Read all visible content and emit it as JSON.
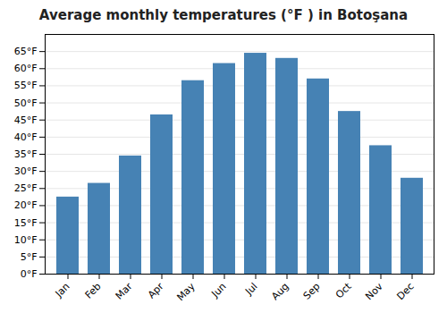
{
  "chart_data": {
    "type": "bar",
    "title": "Average monthly temperatures (°F ) in Botoşana",
    "categories": [
      "Jan",
      "Feb",
      "Mar",
      "Apr",
      "May",
      "Jun",
      "Jul",
      "Aug",
      "Sep",
      "Oct",
      "Nov",
      "Dec"
    ],
    "values": [
      22.5,
      26.5,
      34.5,
      46.5,
      56.5,
      61.5,
      64.5,
      63.0,
      57.0,
      47.5,
      37.5,
      28.0
    ],
    "ylim": [
      0,
      70
    ],
    "yticks": [
      {
        "value": 0,
        "label": "0°F"
      },
      {
        "value": 5,
        "label": "5°F"
      },
      {
        "value": 10,
        "label": "10°F"
      },
      {
        "value": 15,
        "label": "15°F"
      },
      {
        "value": 20,
        "label": "20°F"
      },
      {
        "value": 25,
        "label": "25°F"
      },
      {
        "value": 30,
        "label": "30°F"
      },
      {
        "value": 35,
        "label": "35°F"
      },
      {
        "value": 40,
        "label": "40°F"
      },
      {
        "value": 45,
        "label": "45°F"
      },
      {
        "value": 50,
        "label": "50°F"
      },
      {
        "value": 55,
        "label": "55°F"
      },
      {
        "value": 60,
        "label": "60°F"
      },
      {
        "value": 65,
        "label": "65°F"
      }
    ],
    "grid": true
  }
}
